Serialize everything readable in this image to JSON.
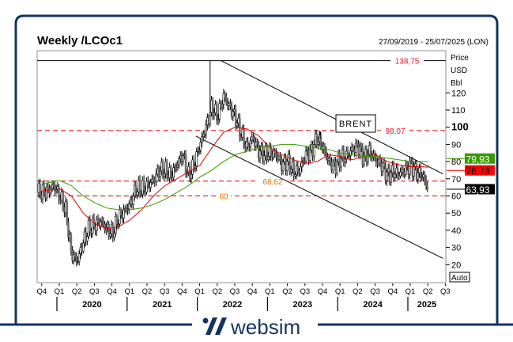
{
  "title": "Weekly /LCOc1",
  "date_range": "27/09/2019 - 25/07/2025 (LON)",
  "axis_unit_lines": [
    "Price",
    "USD",
    "Bbl"
  ],
  "auto_button": "Auto",
  "brand": "websim",
  "colors": {
    "frame": "#14345f",
    "up_candle": "#000000",
    "down_candle": "#707070",
    "ma_fast": "#e00000",
    "ma_slow": "#3a9a00",
    "level_line": "#e00000",
    "label_red": "#e8162e",
    "label_orange": "#e8700a"
  },
  "chart_data": {
    "type": "candlestick",
    "frequency": "weekly",
    "title": "Weekly /LCOc1",
    "ylabel": "Price USD Bbl",
    "ylim": [
      8,
      140
    ],
    "yticks": [
      20,
      30,
      40,
      50,
      60,
      70,
      80,
      90,
      100,
      110,
      120
    ],
    "xlim": [
      "2019-09-27",
      "2025-07-25"
    ],
    "quarter_ticks": [
      "Q4",
      "Q1",
      "Q2",
      "Q3",
      "Q4",
      "Q1",
      "Q2",
      "Q3",
      "Q4",
      "Q1",
      "Q2",
      "Q3",
      "Q4",
      "Q1",
      "Q2",
      "Q3",
      "Q4",
      "Q1",
      "Q2",
      "Q3",
      "Q4",
      "Q1",
      "Q2",
      "Q3"
    ],
    "years": [
      "2020",
      "2021",
      "2022",
      "2023",
      "2024",
      "2025"
    ],
    "monthly_close": [
      [
        "2019-10",
        62
      ],
      [
        "2019-11",
        63
      ],
      [
        "2019-12",
        66
      ],
      [
        "2020-01",
        60
      ],
      [
        "2020-02",
        52
      ],
      [
        "2020-03",
        26
      ],
      [
        "2020-04",
        22
      ],
      [
        "2020-05",
        33
      ],
      [
        "2020-06",
        41
      ],
      [
        "2020-07",
        43
      ],
      [
        "2020-08",
        45
      ],
      [
        "2020-09",
        41
      ],
      [
        "2020-10",
        38
      ],
      [
        "2020-11",
        47
      ],
      [
        "2020-12",
        51
      ],
      [
        "2021-01",
        55
      ],
      [
        "2021-02",
        64
      ],
      [
        "2021-03",
        64
      ],
      [
        "2021-04",
        66
      ],
      [
        "2021-05",
        69
      ],
      [
        "2021-06",
        75
      ],
      [
        "2021-07",
        75
      ],
      [
        "2021-08",
        72
      ],
      [
        "2021-09",
        78
      ],
      [
        "2021-10",
        84
      ],
      [
        "2021-11",
        72
      ],
      [
        "2021-12",
        78
      ],
      [
        "2022-01",
        90
      ],
      [
        "2022-02",
        100
      ],
      [
        "2022-03",
        112
      ],
      [
        "2022-04",
        106
      ],
      [
        "2022-05",
        118
      ],
      [
        "2022-06",
        112
      ],
      [
        "2022-07",
        106
      ],
      [
        "2022-08",
        96
      ],
      [
        "2022-09",
        88
      ],
      [
        "2022-10",
        94
      ],
      [
        "2022-11",
        86
      ],
      [
        "2022-12",
        84
      ],
      [
        "2023-01",
        85
      ],
      [
        "2023-02",
        84
      ],
      [
        "2023-03",
        78
      ],
      [
        "2023-04",
        80
      ],
      [
        "2023-05",
        74
      ],
      [
        "2023-06",
        75
      ],
      [
        "2023-07",
        84
      ],
      [
        "2023-08",
        86
      ],
      [
        "2023-09",
        94
      ],
      [
        "2023-10",
        88
      ],
      [
        "2023-11",
        80
      ],
      [
        "2023-12",
        77
      ],
      [
        "2024-01",
        82
      ],
      [
        "2024-02",
        83
      ],
      [
        "2024-03",
        87
      ],
      [
        "2024-04",
        89
      ],
      [
        "2024-05",
        82
      ],
      [
        "2024-06",
        86
      ],
      [
        "2024-07",
        81
      ],
      [
        "2024-08",
        78
      ],
      [
        "2024-09",
        72
      ],
      [
        "2024-10",
        74
      ],
      [
        "2024-11",
        73
      ],
      [
        "2024-12",
        75
      ],
      [
        "2025-01",
        78
      ],
      [
        "2025-02",
        74
      ],
      [
        "2025-03",
        72
      ],
      [
        "2025-04",
        63.93
      ]
    ],
    "peak_high": {
      "date": "2022-03",
      "value": 138.75
    },
    "series": [
      {
        "kind": "moving-average-fast",
        "color": "#e00000",
        "last": "76,73",
        "values": [
          [
            "2019-10",
            63
          ],
          [
            "2020-01",
            64
          ],
          [
            "2020-03",
            60
          ],
          [
            "2020-05",
            50
          ],
          [
            "2020-07",
            44
          ],
          [
            "2020-09",
            41
          ],
          [
            "2020-11",
            42
          ],
          [
            "2021-01",
            46
          ],
          [
            "2021-03",
            52
          ],
          [
            "2021-05",
            60
          ],
          [
            "2021-07",
            66
          ],
          [
            "2021-09",
            70
          ],
          [
            "2021-11",
            74
          ],
          [
            "2022-01",
            78
          ],
          [
            "2022-03",
            88
          ],
          [
            "2022-05",
            97
          ],
          [
            "2022-07",
            100
          ],
          [
            "2022-09",
            99
          ],
          [
            "2022-11",
            95
          ],
          [
            "2023-01",
            88
          ],
          [
            "2023-03",
            84
          ],
          [
            "2023-05",
            81
          ],
          [
            "2023-07",
            79
          ],
          [
            "2023-09",
            80
          ],
          [
            "2023-11",
            84
          ],
          [
            "2024-01",
            83
          ],
          [
            "2024-03",
            81
          ],
          [
            "2024-05",
            83
          ],
          [
            "2024-07",
            84
          ],
          [
            "2024-09",
            80
          ],
          [
            "2024-11",
            78
          ],
          [
            "2025-01",
            77
          ],
          [
            "2025-03",
            77
          ],
          [
            "2025-04",
            76.73
          ]
        ]
      },
      {
        "kind": "moving-average-slow",
        "color": "#3a9a00",
        "last": "79,93",
        "values": [
          [
            "2019-10",
            67
          ],
          [
            "2020-01",
            69
          ],
          [
            "2020-03",
            66
          ],
          [
            "2020-05",
            60
          ],
          [
            "2020-07",
            56
          ],
          [
            "2020-09",
            53
          ],
          [
            "2020-11",
            52
          ],
          [
            "2021-01",
            52
          ],
          [
            "2021-03",
            53
          ],
          [
            "2021-05",
            55
          ],
          [
            "2021-07",
            58
          ],
          [
            "2021-09",
            62
          ],
          [
            "2021-11",
            66
          ],
          [
            "2022-01",
            71
          ],
          [
            "2022-03",
            75
          ],
          [
            "2022-05",
            80
          ],
          [
            "2022-07",
            84
          ],
          [
            "2022-09",
            86
          ],
          [
            "2022-11",
            88
          ],
          [
            "2023-01",
            89
          ],
          [
            "2023-03",
            90
          ],
          [
            "2023-05",
            90
          ],
          [
            "2023-07",
            89
          ],
          [
            "2023-09",
            88
          ],
          [
            "2023-11",
            87
          ],
          [
            "2024-01",
            85
          ],
          [
            "2024-03",
            84
          ],
          [
            "2024-05",
            83
          ],
          [
            "2024-07",
            83
          ],
          [
            "2024-09",
            82
          ],
          [
            "2024-11",
            81
          ],
          [
            "2025-01",
            80
          ],
          [
            "2025-03",
            80
          ],
          [
            "2025-04",
            79.93
          ]
        ]
      }
    ],
    "last_price": {
      "value": 63.93,
      "label": "63,93",
      "color": "#000000"
    },
    "horizontal_levels": [
      {
        "value": 138.75,
        "label": "138,75",
        "style": "solid",
        "color": "#000000",
        "label_color": "#e8162e"
      },
      {
        "value": 98.07,
        "label": "98,07",
        "style": "dashed",
        "color": "#e00000",
        "label_color": "#e8162e"
      },
      {
        "value": 68.62,
        "label": "68,62",
        "style": "dashed",
        "color": "#e00000",
        "label_color": "#e8700a"
      },
      {
        "value": 60,
        "label": "60",
        "style": "dashed",
        "color": "#e00000",
        "label_color": "#e8700a"
      }
    ],
    "trend_channel": {
      "upper": [
        [
          "2022-03",
          138.75
        ],
        [
          "2025-07",
          72.8
        ]
      ],
      "lower": [
        [
          "2022-01",
          94.8
        ],
        [
          "2025-07",
          23.7
        ]
      ]
    },
    "annotation": {
      "text": "BRENT",
      "date": "2023-10",
      "value": 93
    }
  }
}
